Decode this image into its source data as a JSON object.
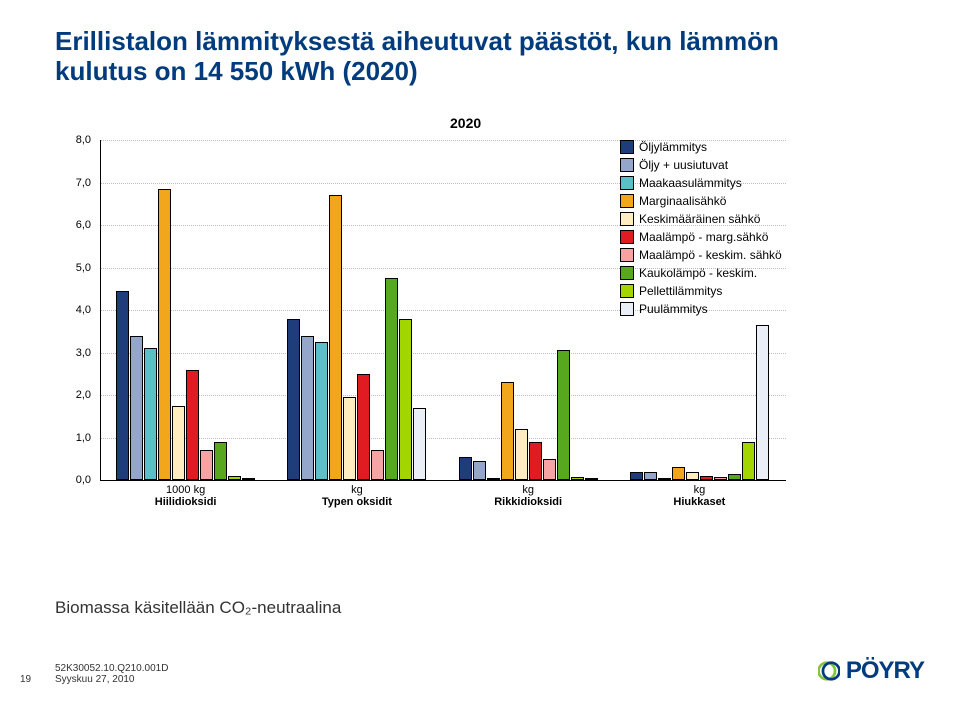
{
  "title": "Erillistalon lämmityksestä aiheutuvat päästöt, kun lämmön kulutus on 14 550 kWh (2020)",
  "subtitle": "2020",
  "y": {
    "max": 8,
    "step": 1,
    "labels": [
      "0,0",
      "1,0",
      "2,0",
      "3,0",
      "4,0",
      "5,0",
      "6,0",
      "7,0",
      "8,0"
    ]
  },
  "series": [
    {
      "label": "Öljylämmitys",
      "color": "#1f3d7a"
    },
    {
      "label": "Öljy + uusiutuvat",
      "color": "#94a6c9"
    },
    {
      "label": "Maakaasulämmitys",
      "color": "#5cbfc5"
    },
    {
      "label": "Marginaalisähkö",
      "color": "#f2a61b"
    },
    {
      "label": "Keskimääräinen sähkö",
      "color": "#ffedbf"
    },
    {
      "label": "Maalämpö - marg.sähkö",
      "color": "#e11b22"
    },
    {
      "label": "Maalämpö - keskim. sähkö",
      "color": "#f7a3a3"
    },
    {
      "label": "Kaukolämpö - keskim.",
      "color": "#57a81e"
    },
    {
      "label": "Pellettilämmitys",
      "color": "#a3d600"
    },
    {
      "label": "Puulämmitys",
      "color": "#e9eef7"
    }
  ],
  "groups": [
    {
      "unit": "1000 kg",
      "name": "Hiilidioksidi",
      "v": [
        4.45,
        3.38,
        3.1,
        6.85,
        1.75,
        2.6,
        0.7,
        0.9,
        0.1,
        0.03
      ]
    },
    {
      "unit": "kg",
      "name": "Typen oksidit",
      "v": [
        3.8,
        3.38,
        3.25,
        6.7,
        1.95,
        2.5,
        0.7,
        4.75,
        3.8,
        1.7
      ]
    },
    {
      "unit": "kg",
      "name": "Rikkidioksidi",
      "v": [
        0.55,
        0.45,
        0.04,
        2.3,
        1.2,
        0.9,
        0.5,
        3.05,
        0.08,
        0.04
      ]
    },
    {
      "unit": "kg",
      "name": "Hiukkaset",
      "v": [
        0.2,
        0.18,
        0.05,
        0.3,
        0.18,
        0.1,
        0.06,
        0.15,
        0.9,
        3.65
      ]
    }
  ],
  "note": "Biomassa käsitellään CO₂-neutraalina",
  "footer": {
    "page": "19",
    "code": "52K30052.10.Q210.001D",
    "date": "Syyskuu 27, 2010",
    "brand": "PÖYRY"
  }
}
